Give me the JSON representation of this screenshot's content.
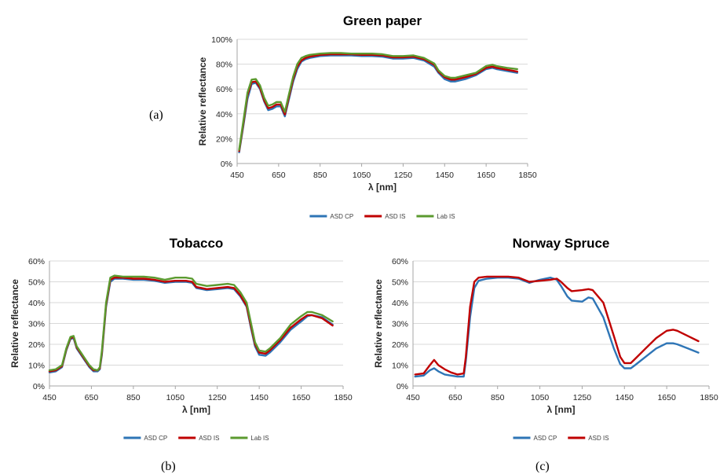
{
  "colors": {
    "asd_cp": "#2e75b6",
    "asd_is": "#c00000",
    "lab_is": "#5b9a2f"
  },
  "panel_labels": {
    "a": "(a)",
    "b": "(b)",
    "c": "(c)"
  },
  "chart_data": [
    {
      "id": "a",
      "type": "line",
      "title": "Green paper",
      "xlabel": "λ [nm]",
      "ylabel": "Relative reflectance",
      "xlim": [
        450,
        1850
      ],
      "ylim": [
        0,
        100
      ],
      "xticks": [
        450,
        650,
        850,
        1050,
        1250,
        1450,
        1650,
        1850
      ],
      "yticks": [
        0,
        20,
        40,
        60,
        80,
        100
      ],
      "ytick_labels": [
        "0%",
        "20%",
        "40%",
        "60%",
        "80%",
        "100%"
      ],
      "grid": true,
      "legend": "bottom",
      "series": [
        {
          "name": "ASD CP",
          "color": "#2e75b6",
          "x": [
            460,
            480,
            500,
            520,
            540,
            560,
            580,
            600,
            620,
            640,
            660,
            680,
            700,
            720,
            740,
            760,
            780,
            800,
            850,
            900,
            950,
            1000,
            1050,
            1100,
            1150,
            1200,
            1250,
            1300,
            1350,
            1400,
            1420,
            1450,
            1480,
            1500,
            1550,
            1600,
            1650,
            1680,
            1700,
            1750,
            1800
          ],
          "y": [
            9,
            30,
            52,
            64,
            65,
            60,
            50,
            43,
            44,
            46,
            46,
            38,
            52,
            66,
            76,
            82,
            84,
            85,
            86.5,
            87,
            87,
            87,
            86.5,
            86.5,
            86,
            84.5,
            84.5,
            85,
            83,
            78,
            73,
            68,
            66,
            66,
            68,
            71,
            76,
            77,
            76,
            74.5,
            73
          ]
        },
        {
          "name": "ASD IS",
          "color": "#c00000",
          "x": [
            460,
            480,
            500,
            520,
            540,
            560,
            580,
            600,
            620,
            640,
            660,
            680,
            700,
            720,
            740,
            760,
            780,
            800,
            850,
            900,
            950,
            1000,
            1050,
            1100,
            1150,
            1200,
            1250,
            1300,
            1350,
            1400,
            1420,
            1450,
            1480,
            1500,
            1550,
            1600,
            1650,
            1680,
            1700,
            1750,
            1800
          ],
          "y": [
            10,
            32,
            55,
            65.5,
            66,
            61,
            51,
            44.5,
            45.5,
            47.5,
            47.5,
            39.5,
            54,
            68,
            78,
            83,
            85,
            86,
            87.5,
            88,
            88,
            88,
            87.5,
            87.5,
            87,
            85.5,
            85.5,
            86,
            84,
            79.5,
            74,
            69.5,
            67.5,
            67.5,
            69.5,
            72,
            77,
            78,
            77,
            75.5,
            74
          ]
        },
        {
          "name": "Lab IS",
          "color": "#5b9a2f",
          "x": [
            460,
            480,
            500,
            520,
            540,
            560,
            580,
            600,
            620,
            640,
            660,
            680,
            700,
            720,
            740,
            760,
            780,
            800,
            850,
            900,
            950,
            1000,
            1050,
            1100,
            1150,
            1200,
            1250,
            1300,
            1350,
            1400,
            1420,
            1450,
            1480,
            1500,
            1550,
            1600,
            1650,
            1680,
            1700,
            1750,
            1800
          ],
          "y": [
            11,
            34,
            57,
            67.5,
            68,
            63,
            53,
            46.5,
            47.5,
            49.5,
            49.5,
            41.5,
            56,
            70,
            80,
            85,
            86.5,
            87.5,
            88.5,
            89,
            89,
            88.5,
            88.5,
            88.5,
            88,
            86.5,
            86.5,
            87,
            85,
            80.5,
            75,
            70.5,
            69,
            69,
            71,
            73,
            78.5,
            79.5,
            78.5,
            77,
            76
          ]
        }
      ]
    },
    {
      "id": "b",
      "type": "line",
      "title": "Tobacco",
      "xlabel": "λ [nm]",
      "ylabel": "Relative reflectance",
      "xlim": [
        450,
        1850
      ],
      "ylim": [
        0,
        60
      ],
      "xticks": [
        450,
        650,
        850,
        1050,
        1250,
        1450,
        1650,
        1850
      ],
      "yticks": [
        0,
        10,
        20,
        30,
        40,
        50,
        60
      ],
      "ytick_labels": [
        "0%",
        "10%",
        "20%",
        "30%",
        "40%",
        "50%",
        "60%"
      ],
      "grid": true,
      "legend": "bottom",
      "series": [
        {
          "name": "ASD CP",
          "color": "#2e75b6",
          "x": [
            450,
            480,
            510,
            530,
            550,
            565,
            580,
            600,
            620,
            640,
            660,
            680,
            690,
            700,
            720,
            740,
            760,
            800,
            850,
            900,
            950,
            1000,
            1050,
            1100,
            1130,
            1150,
            1200,
            1250,
            1300,
            1330,
            1360,
            1390,
            1410,
            1430,
            1450,
            1480,
            1500,
            1550,
            1600,
            1650,
            1680,
            1700,
            1750,
            1800
          ],
          "y": [
            6.5,
            7,
            9,
            17,
            22.5,
            23,
            18,
            15,
            12,
            9,
            7,
            7,
            8,
            15,
            38,
            50,
            51.5,
            51.5,
            51,
            51,
            50.5,
            49.5,
            50,
            50,
            49.5,
            47,
            46,
            46.5,
            47,
            46.5,
            43,
            38,
            28,
            19,
            15,
            14.5,
            16,
            21,
            27,
            31,
            33.5,
            34,
            33,
            29.5
          ]
        },
        {
          "name": "ASD IS",
          "color": "#c00000",
          "x": [
            450,
            480,
            510,
            530,
            550,
            565,
            580,
            600,
            620,
            640,
            660,
            680,
            690,
            700,
            720,
            740,
            760,
            800,
            850,
            900,
            950,
            1000,
            1050,
            1100,
            1130,
            1150,
            1200,
            1250,
            1300,
            1330,
            1360,
            1390,
            1410,
            1430,
            1450,
            1480,
            1500,
            1550,
            1600,
            1650,
            1680,
            1700,
            1750,
            1800
          ],
          "y": [
            7,
            7.5,
            9.5,
            17.5,
            23,
            23.5,
            18.5,
            15.5,
            12.5,
            9.5,
            7.5,
            7.5,
            8.5,
            16,
            39,
            51,
            52,
            52,
            51.5,
            51.5,
            51,
            50,
            50.5,
            50.5,
            50,
            47.5,
            46.5,
            47,
            47.5,
            47,
            43.5,
            38.5,
            29,
            20,
            16,
            15.5,
            17,
            22,
            28,
            32,
            34,
            34,
            32.5,
            29
          ]
        },
        {
          "name": "Lab IS",
          "color": "#5b9a2f",
          "x": [
            450,
            480,
            510,
            530,
            550,
            565,
            580,
            600,
            620,
            640,
            660,
            680,
            690,
            700,
            720,
            740,
            760,
            800,
            850,
            900,
            950,
            1000,
            1050,
            1100,
            1130,
            1150,
            1200,
            1250,
            1300,
            1330,
            1360,
            1390,
            1410,
            1430,
            1450,
            1480,
            1500,
            1550,
            1600,
            1650,
            1680,
            1700,
            1750,
            1800
          ],
          "y": [
            7.5,
            8,
            10,
            18,
            23.5,
            24,
            19,
            16,
            13,
            10,
            8,
            7.5,
            9,
            17,
            40,
            52,
            53,
            52.5,
            52.5,
            52.5,
            52,
            51,
            52,
            52,
            51.5,
            49,
            48,
            48.5,
            49,
            48.5,
            45,
            40,
            30.5,
            21,
            17,
            16.5,
            18,
            23,
            29.5,
            33.5,
            35.5,
            35.5,
            34,
            31
          ]
        }
      ]
    },
    {
      "id": "c",
      "type": "line",
      "title": "Norway Spruce",
      "xlabel": "λ [nm]",
      "ylabel": "Relative reflectance",
      "xlim": [
        450,
        1850
      ],
      "ylim": [
        0,
        60
      ],
      "xticks": [
        450,
        650,
        850,
        1050,
        1250,
        1450,
        1650,
        1850
      ],
      "yticks": [
        0,
        10,
        20,
        30,
        40,
        50,
        60
      ],
      "ytick_labels": [
        "0%",
        "10%",
        "20%",
        "30%",
        "40%",
        "50%",
        "60%"
      ],
      "grid": true,
      "legend": "bottom",
      "series": [
        {
          "name": "ASD CP",
          "color": "#2e75b6",
          "x": [
            460,
            500,
            530,
            550,
            570,
            600,
            630,
            660,
            690,
            700,
            720,
            740,
            760,
            800,
            850,
            900,
            950,
            1000,
            1050,
            1100,
            1130,
            1150,
            1180,
            1200,
            1250,
            1280,
            1300,
            1350,
            1400,
            1430,
            1450,
            1480,
            1500,
            1550,
            1600,
            1650,
            1680,
            1700,
            1750,
            1800
          ],
          "y": [
            4.5,
            5,
            7.5,
            8.5,
            7,
            5.5,
            5,
            4.5,
            4.5,
            12,
            33,
            47,
            50.5,
            51.5,
            52,
            52,
            51.5,
            49.5,
            51,
            52,
            51,
            48,
            43,
            41,
            40.5,
            42.5,
            42,
            33,
            18,
            10.5,
            8.5,
            8.5,
            10,
            14,
            18,
            20.5,
            20.5,
            20,
            18,
            16
          ]
        },
        {
          "name": "ASD IS",
          "color": "#c00000",
          "x": [
            460,
            500,
            530,
            550,
            570,
            600,
            630,
            660,
            690,
            700,
            720,
            740,
            760,
            800,
            850,
            900,
            950,
            1000,
            1050,
            1100,
            1130,
            1150,
            1180,
            1200,
            1250,
            1280,
            1300,
            1350,
            1400,
            1430,
            1450,
            1480,
            1500,
            1550,
            1600,
            1650,
            1680,
            1700,
            1750,
            1800
          ],
          "y": [
            5.5,
            6,
            10,
            12.5,
            10,
            8,
            6.5,
            5.5,
            6,
            14,
            38,
            50,
            52,
            52.5,
            52.5,
            52.5,
            52,
            50,
            50.5,
            51,
            51.5,
            50,
            47,
            45.5,
            46,
            46.5,
            46,
            40,
            24,
            14,
            11,
            11,
            13,
            18,
            23,
            26.5,
            27,
            26.5,
            24,
            21.5
          ]
        }
      ]
    }
  ]
}
